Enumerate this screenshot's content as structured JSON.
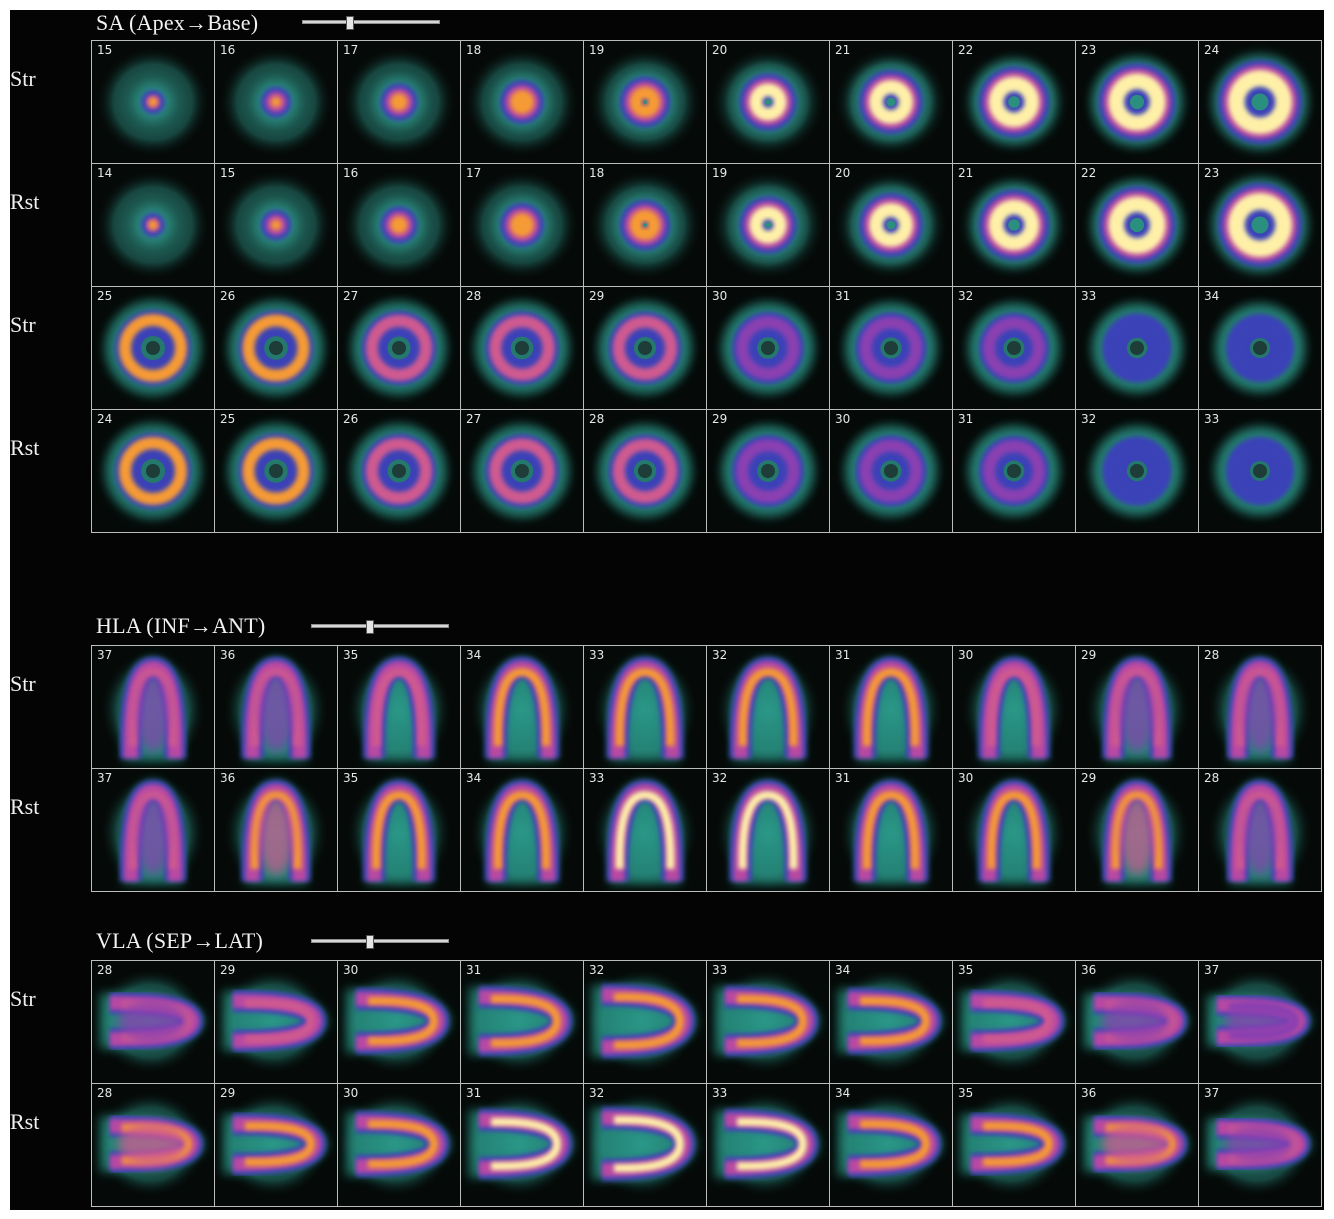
{
  "sections": [
    {
      "title": "SA (Apex→Base)",
      "slider_value": 0.34,
      "rows": [
        {
          "label": "Str",
          "slices": [
            "15",
            "16",
            "17",
            "18",
            "19",
            "20",
            "21",
            "22",
            "23",
            "24"
          ]
        },
        {
          "label": "Rst",
          "slices": [
            "14",
            "15",
            "16",
            "17",
            "18",
            "19",
            "20",
            "21",
            "22",
            "23"
          ]
        },
        {
          "label": "Str",
          "slices": [
            "25",
            "26",
            "27",
            "28",
            "29",
            "30",
            "31",
            "32",
            "33",
            "34"
          ]
        },
        {
          "label": "Rst",
          "slices": [
            "24",
            "25",
            "26",
            "27",
            "28",
            "29",
            "30",
            "31",
            "32",
            "33"
          ]
        }
      ]
    },
    {
      "title": "HLA (INF→ANT)",
      "slider_value": 0.42,
      "rows": [
        {
          "label": "Str",
          "slices": [
            "37",
            "36",
            "35",
            "34",
            "33",
            "32",
            "31",
            "30",
            "29",
            "28"
          ]
        },
        {
          "label": "Rst",
          "slices": [
            "37",
            "36",
            "35",
            "34",
            "33",
            "32",
            "31",
            "30",
            "29",
            "28"
          ]
        }
      ]
    },
    {
      "title": "VLA (SEP→LAT)",
      "slider_value": 0.42,
      "rows": [
        {
          "label": "Str",
          "slices": [
            "28",
            "29",
            "30",
            "31",
            "32",
            "33",
            "34",
            "35",
            "36",
            "37"
          ]
        },
        {
          "label": "Rst",
          "slices": [
            "28",
            "29",
            "30",
            "31",
            "32",
            "33",
            "34",
            "35",
            "36",
            "37"
          ]
        }
      ]
    }
  ],
  "colors": {
    "background": "#040404",
    "halo": "#2f8f82",
    "ring_low": "#3a3fb8",
    "ring_mid": "#b33fa6",
    "ring_high": "#f08a2a",
    "ring_peak": "#fff3b0"
  },
  "icons": {
    "slider": "slider-thumb-icon"
  }
}
